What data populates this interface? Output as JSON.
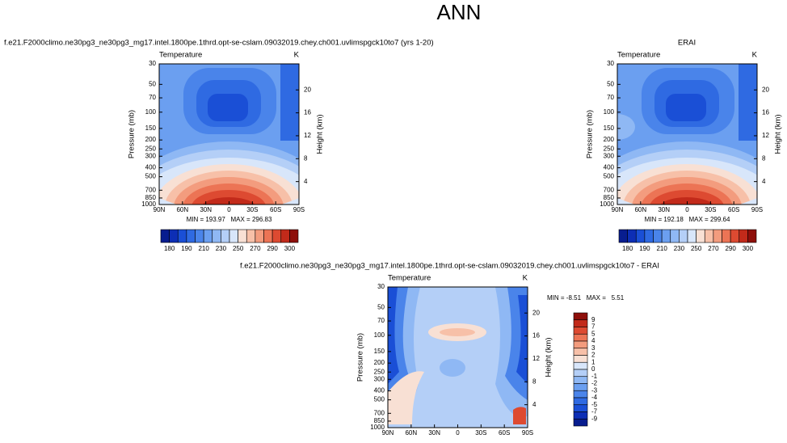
{
  "title": "ANN",
  "panels": [
    {
      "title": "f.e21.F2000climo.ne30pg3_ne30pg3_mg17.intel.1800pe.1thrd.opt-se-cslam.09032019.chey.ch001.uvlimspgck10to7 (yrs 1-20)",
      "variable": "Temperature",
      "units": "K",
      "y_label": "Pressure (mb)",
      "y2_label": "Height (km)",
      "pressure_ticks": [
        30,
        50,
        70,
        100,
        150,
        200,
        250,
        300,
        400,
        500,
        700,
        850,
        1000
      ],
      "height_ticks": [
        4,
        8,
        12,
        16,
        20
      ],
      "x_ticks": [
        "90N",
        "60N",
        "30N",
        "0",
        "30S",
        "60S",
        "90S"
      ],
      "stats": "MIN = 193.97   MAX = 296.83",
      "colorbar_labels": [
        180,
        190,
        210,
        230,
        250,
        270,
        290,
        300
      ]
    },
    {
      "title": "ERAI",
      "variable": "Temperature",
      "units": "K",
      "y_label": "Pressure (mb)",
      "y2_label": "Height (km)",
      "pressure_ticks": [
        30,
        50,
        70,
        100,
        150,
        200,
        250,
        300,
        400,
        500,
        700,
        850,
        1000
      ],
      "height_ticks": [
        4,
        8,
        12,
        16,
        20
      ],
      "x_ticks": [
        "90N",
        "60N",
        "30N",
        "0",
        "30S",
        "60S",
        "90S"
      ],
      "stats": "MIN = 192.18   MAX = 299.64",
      "colorbar_labels": [
        180,
        190,
        210,
        230,
        250,
        270,
        290,
        300
      ]
    },
    {
      "title": "f.e21.F2000climo.ne30pg3_ne30pg3_mg17.intel.1800pe.1thrd.opt-se-cslam.09032019.chey.ch001.uvlimspgck10to7 - ERAI",
      "variable": "Temperature",
      "units": "K",
      "y_label": "Pressure (mb)",
      "y2_label": "Height (km)",
      "pressure_ticks": [
        30,
        50,
        70,
        100,
        150,
        200,
        250,
        300,
        400,
        500,
        700,
        850,
        1000
      ],
      "height_ticks": [
        4,
        8,
        12,
        16,
        20
      ],
      "x_ticks": [
        "90N",
        "60N",
        "30N",
        "0",
        "30S",
        "60S",
        "90S"
      ],
      "stats": "MIN = -8.51   MAX =   5.51",
      "colorbar_labels": [
        9,
        7,
        5,
        4,
        3,
        2,
        1,
        0,
        -1,
        -2,
        -3,
        -4,
        -5,
        -7,
        -9
      ]
    }
  ]
}
